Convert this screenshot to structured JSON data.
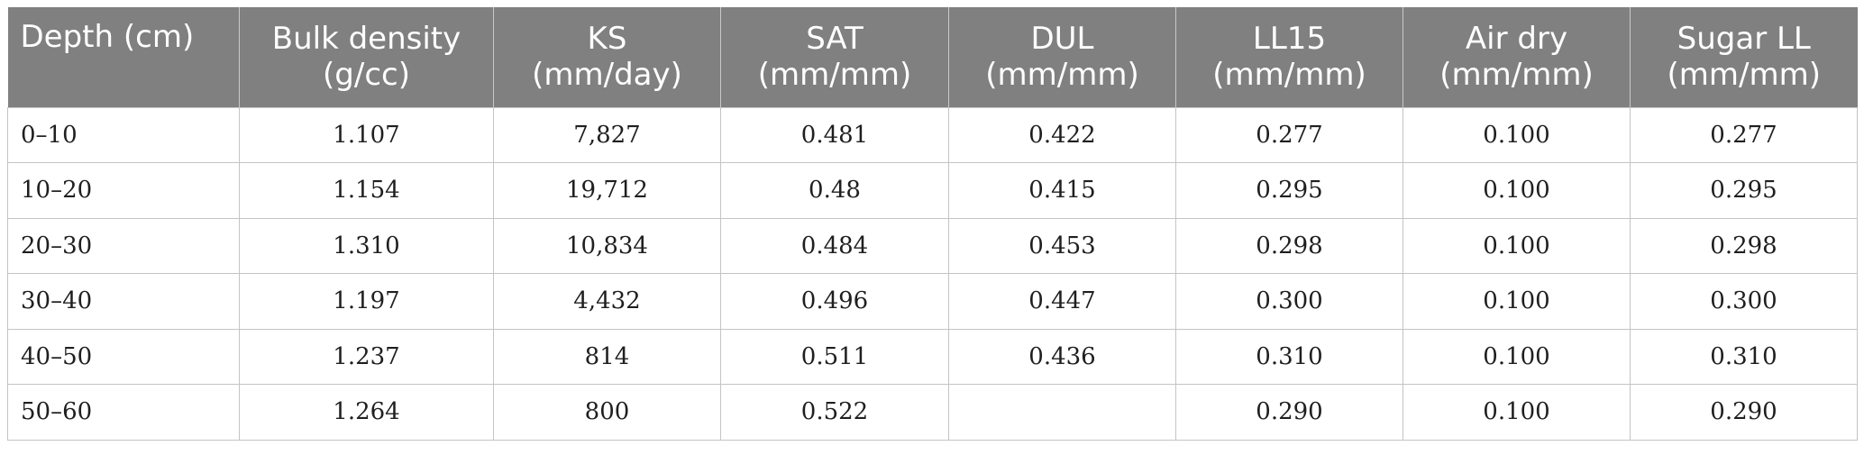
{
  "table": {
    "headers": [
      {
        "line1": "Depth (cm)",
        "line2": ""
      },
      {
        "line1": "Bulk density",
        "line2": "(g/cc)"
      },
      {
        "line1": "KS",
        "line2": "(mm/day)"
      },
      {
        "line1": "SAT",
        "line2": "(mm/mm)"
      },
      {
        "line1": "DUL",
        "line2": "(mm/mm)"
      },
      {
        "line1": "LL15",
        "line2": "(mm/mm)"
      },
      {
        "line1": "Air dry",
        "line2": "(mm/mm)"
      },
      {
        "line1": "Sugar LL",
        "line2": "(mm/mm)"
      }
    ],
    "rows": [
      [
        "0–10",
        "1.107",
        "7,827",
        "0.481",
        "0.422",
        "0.277",
        "0.100",
        "0.277"
      ],
      [
        "10–20",
        "1.154",
        "19,712",
        "0.48",
        "0.415",
        "0.295",
        "0.100",
        "0.295"
      ],
      [
        "20–30",
        "1.310",
        "10,834",
        "0.484",
        "0.453",
        "0.298",
        "0.100",
        "0.298"
      ],
      [
        "30–40",
        "1.197",
        "4,432",
        "0.496",
        "0.447",
        "0.300",
        "0.100",
        "0.300"
      ],
      [
        "40–50",
        "1.237",
        "814",
        "0.511",
        "0.436",
        "0.310",
        "0.100",
        "0.310"
      ],
      [
        "50–60",
        "1.264",
        "800",
        "0.522",
        "",
        "0.290",
        "0.100",
        "0.290"
      ]
    ]
  },
  "colors": {
    "header_bg": "#7f807f",
    "header_text": "#ffffff",
    "grid_line": "#c4c4c4",
    "cell_text": "#1f1f1f"
  }
}
